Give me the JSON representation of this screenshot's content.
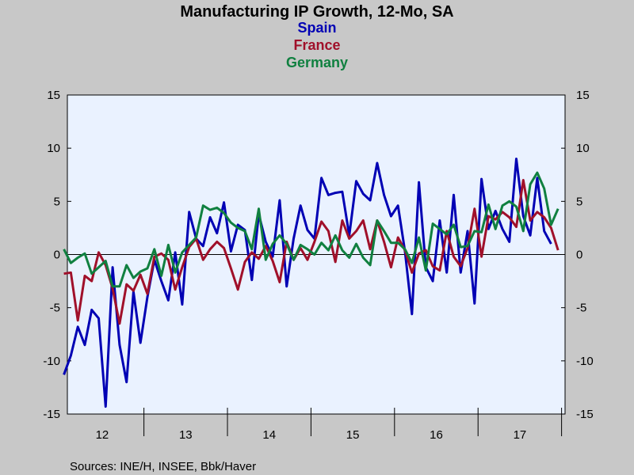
{
  "chart_data": {
    "type": "line",
    "title": "Manufacturing IP Growth, 12-Mo, SA",
    "ylim": [
      -15,
      15
    ],
    "yticks": [
      15,
      10,
      5,
      0,
      -5,
      -10,
      -15
    ],
    "x_start": "2012-01",
    "x_end": "2017-12",
    "xtick_labels": [
      "12",
      "13",
      "14",
      "15",
      "16",
      "17"
    ],
    "grid": false,
    "legend_placement": "top-center",
    "source": "Sources:  INE/H, INSEE, Bbk/Haver",
    "series": [
      {
        "name": "Spain",
        "color": "#0000b4",
        "x_start": "2012-01",
        "values": [
          -11.3,
          -9.5,
          -6.8,
          -8.5,
          -5.2,
          -6,
          -14.3,
          -1.2,
          -8.5,
          -12,
          -3.5,
          -8.3,
          -4,
          -0.5,
          -2.5,
          -4.3,
          0.2,
          -4.7,
          4,
          1.5,
          0.8,
          3.5,
          2,
          4.9,
          0.3,
          2.8,
          2.3,
          -2.4,
          3.8,
          1.2,
          -0.2,
          5.1,
          -3,
          1.5,
          4.6,
          2.3,
          1.5,
          7.2,
          5.6,
          5.8,
          5.9,
          1.8,
          6.9,
          5.7,
          5.1,
          8.6,
          5.6,
          3.6,
          4.6,
          0.3,
          -5.6,
          6.8,
          -1.2,
          -2.5,
          3.2,
          -1.7,
          5.6,
          -1.7,
          2.2,
          -4.6,
          7.1,
          2.4,
          4.1,
          2.4,
          1.2,
          9,
          3.6,
          1.8,
          7.2,
          2.2,
          1
        ]
      },
      {
        "name": "France",
        "color": "#a0102a",
        "x_start": "2012-01",
        "values": [
          -1.8,
          -1.7,
          -6.2,
          -2,
          -2.5,
          0.2,
          -1,
          -3.2,
          -6.5,
          -2.8,
          -3.4,
          -1.9,
          -3.7,
          -0.2,
          0.1,
          -0.5,
          -3.3,
          -1.2,
          0.7,
          1.5,
          -0.5,
          0.5,
          1.2,
          0.6,
          -1.3,
          -3.3,
          -0.7,
          0.2,
          -0.4,
          0.8,
          -0.6,
          -2.6,
          1.2,
          -0.5,
          0.6,
          -0.5,
          1.2,
          3.1,
          2.2,
          -0.7,
          3.2,
          1.5,
          2.2,
          3.2,
          0.5,
          3.2,
          1.2,
          -1.2,
          1.6,
          0.4,
          -1.7,
          0.1,
          0.4,
          -1.1,
          -1.5,
          2.2,
          -0.2,
          -1.1,
          0.6,
          4.3,
          -0.2,
          3.6,
          3.3,
          4,
          3.5,
          2.6,
          7,
          3.2,
          4,
          3.5,
          2.5,
          0.4
        ]
      },
      {
        "name": "Germany",
        "color": "#108040",
        "x_start": "2012-01",
        "values": [
          0.5,
          -0.8,
          -0.3,
          0.1,
          -1.8,
          -1.2,
          -0.6,
          -3,
          -3,
          -1,
          -2.2,
          -1.6,
          -1.3,
          0.5,
          -2,
          0.9,
          -1.7,
          0.2,
          0.9,
          1.6,
          4.6,
          4.2,
          4.4,
          3.9,
          3,
          2.5,
          2.2,
          0.5,
          4.3,
          -0.5,
          1,
          1.8,
          1,
          -0.5,
          0.9,
          0.5,
          0,
          1.1,
          0.4,
          1.8,
          0.4,
          -0.3,
          1,
          -0.3,
          -1,
          3.2,
          2.2,
          1.1,
          1.1,
          0.5,
          -0.8,
          1.6,
          -1.5,
          2.9,
          2.4,
          1.9,
          2.8,
          0.7,
          0.8,
          2.2,
          2.1,
          4.7,
          2.4,
          4.6,
          5,
          4.5,
          2.2,
          6.6,
          7.7,
          6.2,
          2.8,
          4.3
        ]
      }
    ]
  }
}
